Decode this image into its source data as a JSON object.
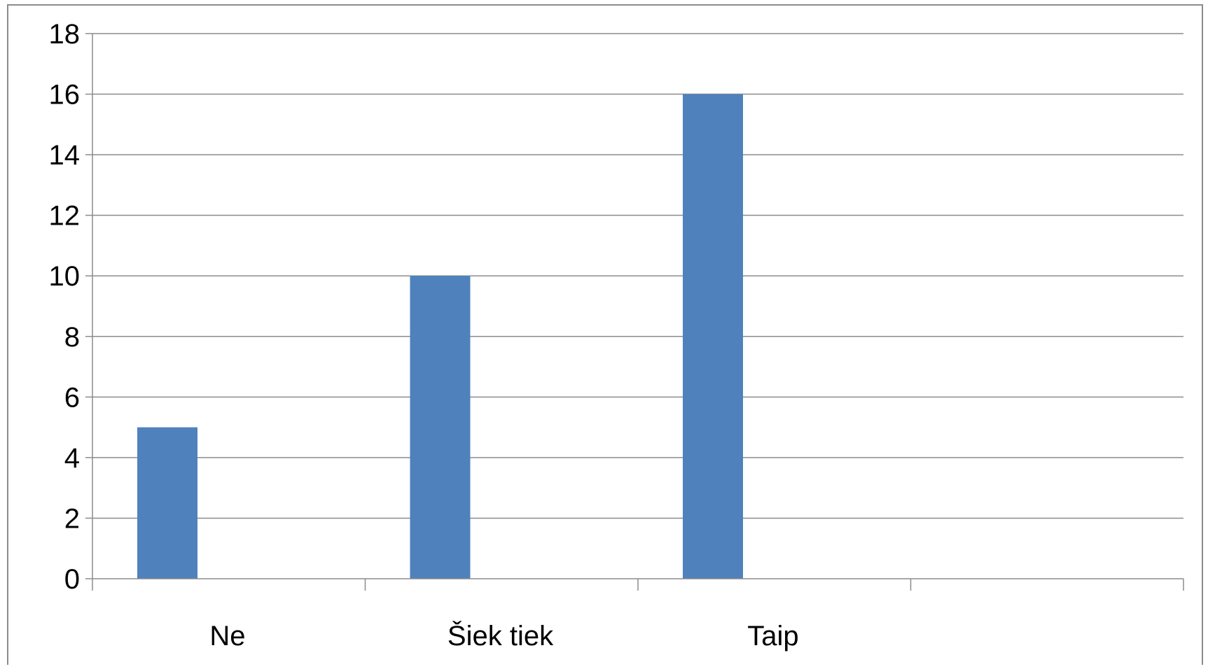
{
  "chart_data": {
    "type": "bar",
    "categories": [
      "Ne",
      "Šiek tiek",
      "Taip",
      ""
    ],
    "values": [
      5,
      10,
      16,
      null
    ],
    "ylim": [
      0,
      18
    ],
    "yticks": [
      0,
      2,
      4,
      6,
      8,
      10,
      12,
      14,
      16,
      18
    ],
    "grid": true,
    "legend": "none",
    "bar_color": "#4f81bd",
    "grid_color": "#8c8c8c"
  }
}
